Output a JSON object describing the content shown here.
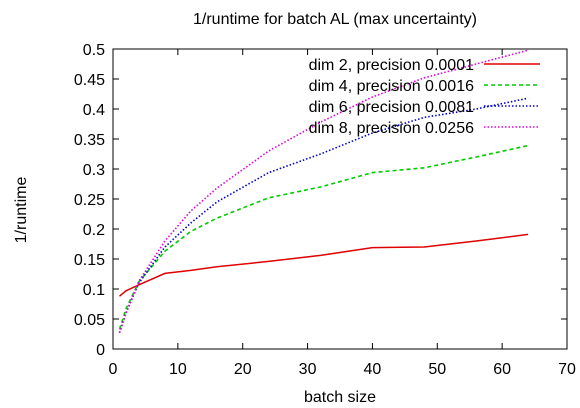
{
  "chart_data": {
    "type": "line",
    "title": "1/runtime for batch AL (max uncertainty)",
    "xlabel": "batch size",
    "ylabel": "1/runtime",
    "xlim": [
      0,
      70
    ],
    "ylim": [
      0,
      0.5
    ],
    "x_ticks": [
      0,
      10,
      20,
      30,
      40,
      50,
      60,
      70
    ],
    "y_ticks": [
      0,
      0.05,
      0.1,
      0.15,
      0.2,
      0.25,
      0.3,
      0.35,
      0.4,
      0.45,
      0.5
    ],
    "x_tick_labels": [
      "0",
      "10",
      "20",
      "30",
      "40",
      "50",
      "60",
      "70"
    ],
    "y_tick_labels": [
      "0",
      "0.05",
      "0.1",
      "0.15",
      "0.2",
      "0.25",
      "0.3",
      "0.35",
      "0.4",
      "0.45",
      "0.5"
    ],
    "grid": false,
    "legend_position": "top-right",
    "series": [
      {
        "name": "dim 2, precision 0.0001",
        "color": "#e00000",
        "style": "solid",
        "x": [
          1,
          2,
          4,
          8,
          12,
          16,
          24,
          32,
          40,
          48,
          56,
          64
        ],
        "y": [
          0.088,
          0.097,
          0.107,
          0.126,
          0.131,
          0.137,
          0.146,
          0.156,
          0.169,
          0.17,
          0.18,
          0.191
        ]
      },
      {
        "name": "dim 4, precision 0.0016",
        "color": "#00cc00",
        "style": "dashed",
        "x": [
          1,
          2,
          4,
          8,
          12,
          16,
          24,
          32,
          40,
          48,
          56,
          64
        ],
        "y": [
          0.033,
          0.067,
          0.112,
          0.163,
          0.196,
          0.218,
          0.252,
          0.27,
          0.294,
          0.302,
          0.32,
          0.339
        ]
      },
      {
        "name": "dim 6, precision 0.0081",
        "color": "#0000cc",
        "style": "dotted",
        "x": [
          1,
          2,
          4,
          8,
          12,
          16,
          24,
          32,
          40,
          48,
          56,
          64
        ],
        "y": [
          0.027,
          0.06,
          0.11,
          0.17,
          0.21,
          0.245,
          0.294,
          0.325,
          0.36,
          0.386,
          0.4,
          0.418
        ]
      },
      {
        "name": "dim 8, precision 0.0256",
        "color": "#dd00dd",
        "style": "dotted",
        "x": [
          1,
          2,
          4,
          8,
          12,
          16,
          24,
          32,
          40,
          48,
          56,
          64
        ],
        "y": [
          0.027,
          0.06,
          0.113,
          0.18,
          0.23,
          0.268,
          0.33,
          0.378,
          0.42,
          0.452,
          0.475,
          0.498
        ]
      }
    ]
  }
}
